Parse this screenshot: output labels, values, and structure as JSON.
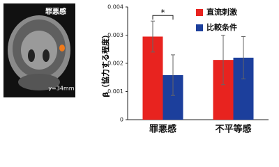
{
  "image": {
    "label": "罪悪感",
    "caption": "y=34mm"
  },
  "chart_data": {
    "type": "bar",
    "ylabel": "β（協力する程度）",
    "categories": [
      "罪悪感",
      "不平等感"
    ],
    "series": [
      {
        "name": "直流刺激",
        "color": "#e8231f",
        "values": [
          0.00295,
          0.00212
        ],
        "errors": [
          0.00055,
          0.00088
        ]
      },
      {
        "name": "比較条件",
        "color": "#1c3f9c",
        "values": [
          0.00158,
          0.0022
        ],
        "errors": [
          0.00072,
          0.00075
        ]
      }
    ],
    "ylim": [
      0,
      0.004
    ],
    "yticks": [
      0,
      0.001,
      0.002,
      0.003,
      0.004
    ],
    "significance": "*"
  }
}
